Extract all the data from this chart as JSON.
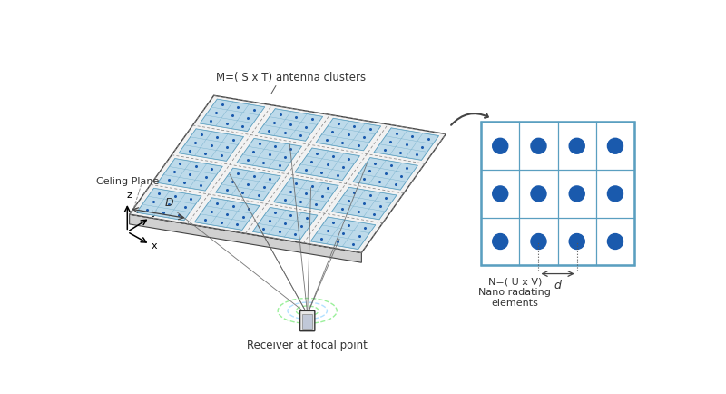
{
  "bg_color": "#ffffff",
  "ceiling_label": "Celing Plane",
  "M_label": "M=( S x T) antenna clusters",
  "N_label": "N=( U x V)\nNano radating\nelements",
  "D_label": "D",
  "d_label": "d",
  "receiver_label": "Receiver at focal point",
  "panel_color": "#b8d8ea",
  "panel_edge_color": "#5a9fc0",
  "dot_color": "#1a5aad",
  "dashed_color": "#888888",
  "ceiling_top_color": "#f2f2f2",
  "ceiling_side_color": "#d8d8d8",
  "ceiling_edge_color": "#444444",
  "box_color": "#e8f4fb",
  "box_edge_color": "#5a9fc0",
  "arrow_color": "#444444",
  "ray_color": "#666666",
  "beam_colors": [
    "#90ee90",
    "#aaddff",
    "#90ee90"
  ],
  "rows": 4,
  "cols": 4,
  "dot_rows_panel": 3,
  "dot_cols_panel": 3,
  "zoom_dot_rows": 3,
  "zoom_dot_cols": 4
}
